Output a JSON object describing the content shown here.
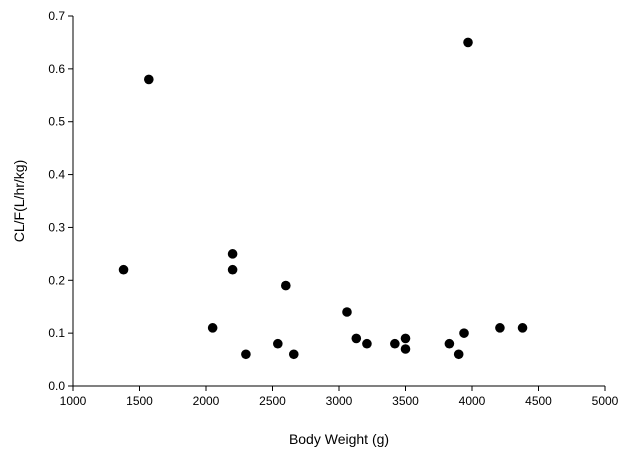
{
  "chart_data": {
    "type": "scatter",
    "title": "",
    "xlabel": "Body Weight  (g)",
    "ylabel": "CL/F(L/hr/kg)",
    "xlim": [
      1000,
      5000
    ],
    "ylim": [
      0.0,
      0.7
    ],
    "xticks": [
      "1000",
      "1500",
      "2000",
      "2500",
      "3000",
      "3500",
      "4000",
      "4500",
      "5000"
    ],
    "yticks": [
      "0.0",
      "0.1",
      "0.2",
      "0.3",
      "0.4",
      "0.5",
      "0.6",
      "0.7"
    ],
    "grid": false,
    "legend": "none",
    "marker_color": "#000000",
    "points": [
      {
        "x": 1380,
        "y": 0.22
      },
      {
        "x": 1570,
        "y": 0.58
      },
      {
        "x": 2050,
        "y": 0.11
      },
      {
        "x": 2200,
        "y": 0.25
      },
      {
        "x": 2200,
        "y": 0.22
      },
      {
        "x": 2300,
        "y": 0.06
      },
      {
        "x": 2540,
        "y": 0.08
      },
      {
        "x": 2600,
        "y": 0.19
      },
      {
        "x": 2660,
        "y": 0.06
      },
      {
        "x": 3060,
        "y": 0.14
      },
      {
        "x": 3130,
        "y": 0.09
      },
      {
        "x": 3210,
        "y": 0.08
      },
      {
        "x": 3420,
        "y": 0.08
      },
      {
        "x": 3500,
        "y": 0.09
      },
      {
        "x": 3500,
        "y": 0.07
      },
      {
        "x": 3830,
        "y": 0.08
      },
      {
        "x": 3900,
        "y": 0.06
      },
      {
        "x": 3940,
        "y": 0.1
      },
      {
        "x": 3970,
        "y": 0.65
      },
      {
        "x": 4210,
        "y": 0.11
      },
      {
        "x": 4380,
        "y": 0.11
      }
    ]
  }
}
